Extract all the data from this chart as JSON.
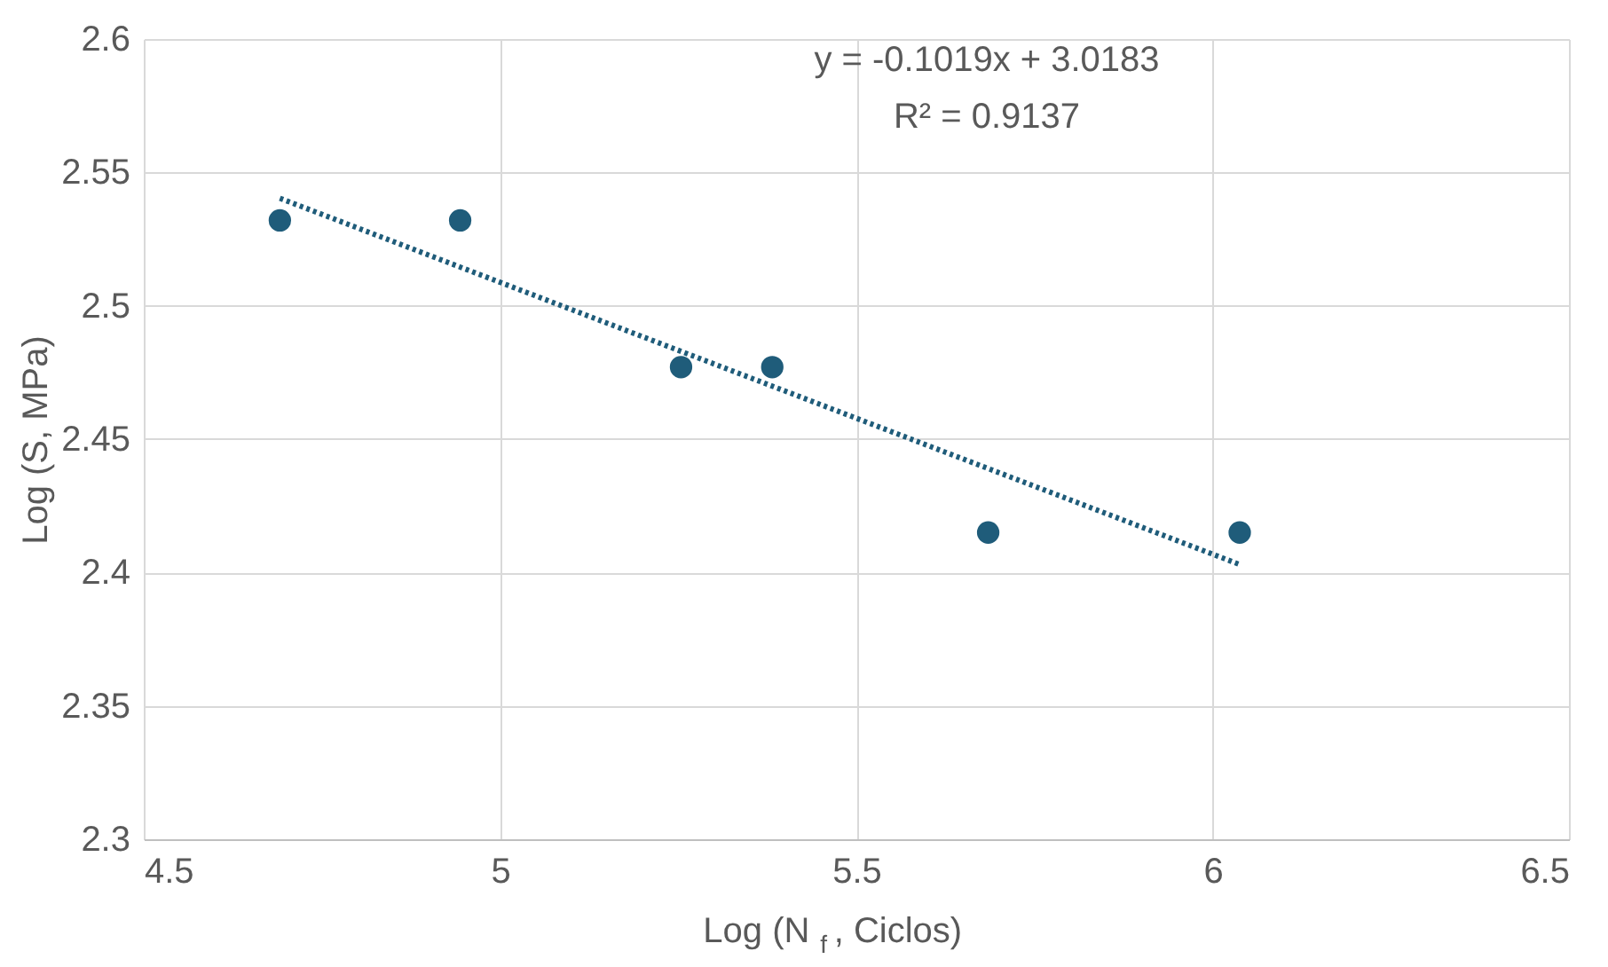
{
  "chart_data": {
    "type": "scatter",
    "xlabel": "Log (N$_{f}$, Ciclos)",
    "ylabel": "Log (S, MPa)",
    "annotations": [
      "y = -0.1019x + 3.0183",
      "R² = 0.9137"
    ],
    "series": [
      {
        "color": "#1f5c7a",
        "x": [
          4.691,
          4.944,
          5.254,
          5.382,
          5.685,
          6.038
        ],
        "values": [
          2.532,
          2.532,
          2.477,
          2.477,
          2.415,
          2.415
        ],
        "marker": "circle"
      },
      {
        "type": "line",
        "color": "#1f5c7a",
        "x": [
          4.691,
          6.038
        ],
        "values": [
          2.5403,
          2.403
        ],
        "line_style": "dotted"
      }
    ],
    "xlim": [
      4.5,
      6.5
    ],
    "xticks": [
      4.5,
      5,
      5.5,
      6,
      6.5
    ],
    "ylim": [
      2.3,
      2.6
    ],
    "yticks": [
      2.3,
      2.35,
      2.4,
      2.45,
      2.5,
      2.55,
      2.6
    ],
    "grid": true
  }
}
